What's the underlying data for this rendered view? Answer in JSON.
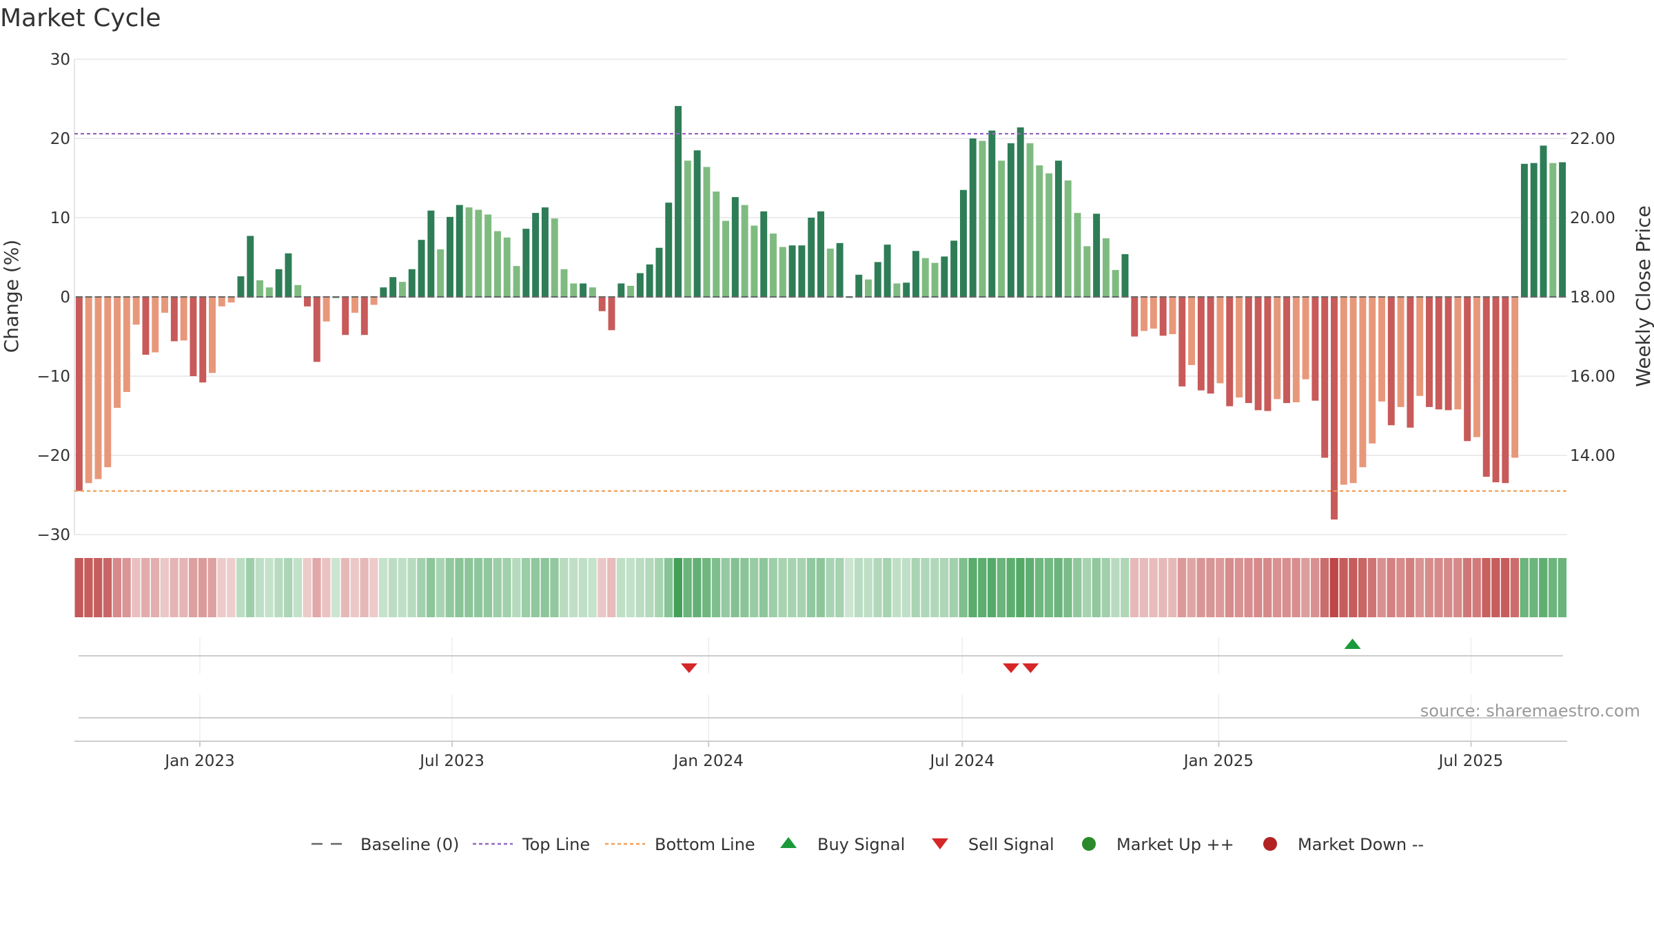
{
  "chart_data": {
    "type": "bar",
    "title": "Market Cycle",
    "ylabel": "Change (%)",
    "y2label": "Weekly Close Price",
    "ylim": [
      -30,
      30
    ],
    "yticks": [
      30,
      20,
      10,
      0,
      -10,
      -20,
      -30
    ],
    "ytick_labels": [
      "30",
      "20",
      "10",
      "0",
      "−10",
      "−20",
      "−30"
    ],
    "y2lim": [
      14.0,
      22.0
    ],
    "y2ticks": [
      22.0,
      20.0,
      18.0,
      16.0,
      14.0
    ],
    "y2tick_labels": [
      "22.00",
      "20.00",
      "18.00",
      "16.00",
      "14.00"
    ],
    "x_start": "2022-10-03",
    "x_end": "2025-09-08",
    "x_ticks": [
      {
        "date": "2023-01-01",
        "label": "Jan 2023"
      },
      {
        "date": "2023-07-01",
        "label": "Jul 2023"
      },
      {
        "date": "2024-01-01",
        "label": "Jan 2024"
      },
      {
        "date": "2024-07-01",
        "label": "Jul 2024"
      },
      {
        "date": "2025-01-01",
        "label": "Jan 2025"
      },
      {
        "date": "2025-07-01",
        "label": "Jul 2025"
      }
    ],
    "top_line": 20.6,
    "bottom_line": -24.5,
    "weekly_change": [
      -24.5,
      -23.5,
      -23,
      -21.5,
      -14,
      -12,
      -3.5,
      -7.3,
      -7,
      -2,
      -5.6,
      -5.5,
      -10,
      -10.8,
      -9.6,
      -1.2,
      -0.7,
      2.6,
      7.7,
      2.1,
      1.2,
      3.5,
      5.5,
      1.5,
      -1.2,
      -8.2,
      -3.1,
      0,
      -4.8,
      -2,
      -4.8,
      -1,
      1.2,
      2.5,
      1.9,
      3.5,
      7.2,
      10.9,
      6,
      10.1,
      11.6,
      11.3,
      11,
      10.4,
      8.3,
      7.5,
      3.9,
      8.6,
      10.6,
      11.3,
      9.9,
      3.5,
      1.7,
      1.7,
      1.2,
      -1.8,
      -4.2,
      1.7,
      1.4,
      3,
      4.1,
      6.2,
      11.9,
      24.1,
      17.2,
      18.5,
      16.4,
      13.3,
      9.6,
      12.6,
      11.6,
      9,
      10.8,
      8,
      6.3,
      6.5,
      6.5,
      10,
      10.8,
      6.1,
      6.8,
      0,
      2.8,
      2.2,
      4.4,
      6.6,
      1.7,
      1.8,
      5.8,
      4.9,
      4.3,
      5.1,
      7.1,
      13.5,
      20,
      19.7,
      21,
      17.2,
      19.4,
      21.4,
      19.4,
      16.6,
      15.6,
      17.2,
      14.7,
      10.6,
      6.4,
      10.5,
      7.4,
      3.4,
      5.4,
      -5,
      -4.3,
      -4,
      -4.9,
      -4.7,
      -11.3,
      -8.6,
      -11.8,
      -12.2,
      -10.9,
      -13.8,
      -12.7,
      -13.4,
      -14.3,
      -14.4,
      -12.9,
      -13.4,
      -13.3,
      -10.4,
      -13.1,
      -20.3,
      -28.1,
      -23.7,
      -23.5,
      -21.5,
      -18.5,
      -13.2,
      -16.2,
      -13.9,
      -16.5,
      -12.5,
      -13.9,
      -14.2,
      -14.3,
      -14.2,
      -18.2,
      -17.7,
      -22.7,
      -23.4,
      -23.5,
      -20.3,
      16.8,
      16.9,
      19.1,
      16.9,
      17
    ],
    "sell_signals": [
      "2023-12-18",
      "2024-08-05",
      "2024-08-19"
    ],
    "buy_signals": [
      "2025-04-07"
    ],
    "legend": [
      {
        "key": "baseline",
        "label": "Baseline (0)",
        "color": "#666666"
      },
      {
        "key": "top",
        "label": "Top Line",
        "color": "#9467bd"
      },
      {
        "key": "bottom",
        "label": "Bottom Line",
        "color": "#f0a05a"
      },
      {
        "key": "buy",
        "label": "Buy Signal",
        "color": "#1a9a3a"
      },
      {
        "key": "sell",
        "label": "Sell Signal",
        "color": "#d62728"
      },
      {
        "key": "up",
        "label": "Market Up ++",
        "color": "#2a8a2a"
      },
      {
        "key": "down",
        "label": "Market Down --",
        "color": "#b22222"
      }
    ],
    "legend_position": "bottom-center",
    "source": "source: sharemaestro.com",
    "colors": {
      "up_strong": "#2e7d57",
      "up_weak": "#7fbb80",
      "down_strong": "#c85a5a",
      "down_weak": "#e8987a",
      "top_line": "#9467bd",
      "bottom_line": "#f0a05a",
      "grid": "#e5e5e5",
      "baseline": "#666666",
      "buy": "#1a9a3a",
      "sell": "#d62728"
    }
  }
}
